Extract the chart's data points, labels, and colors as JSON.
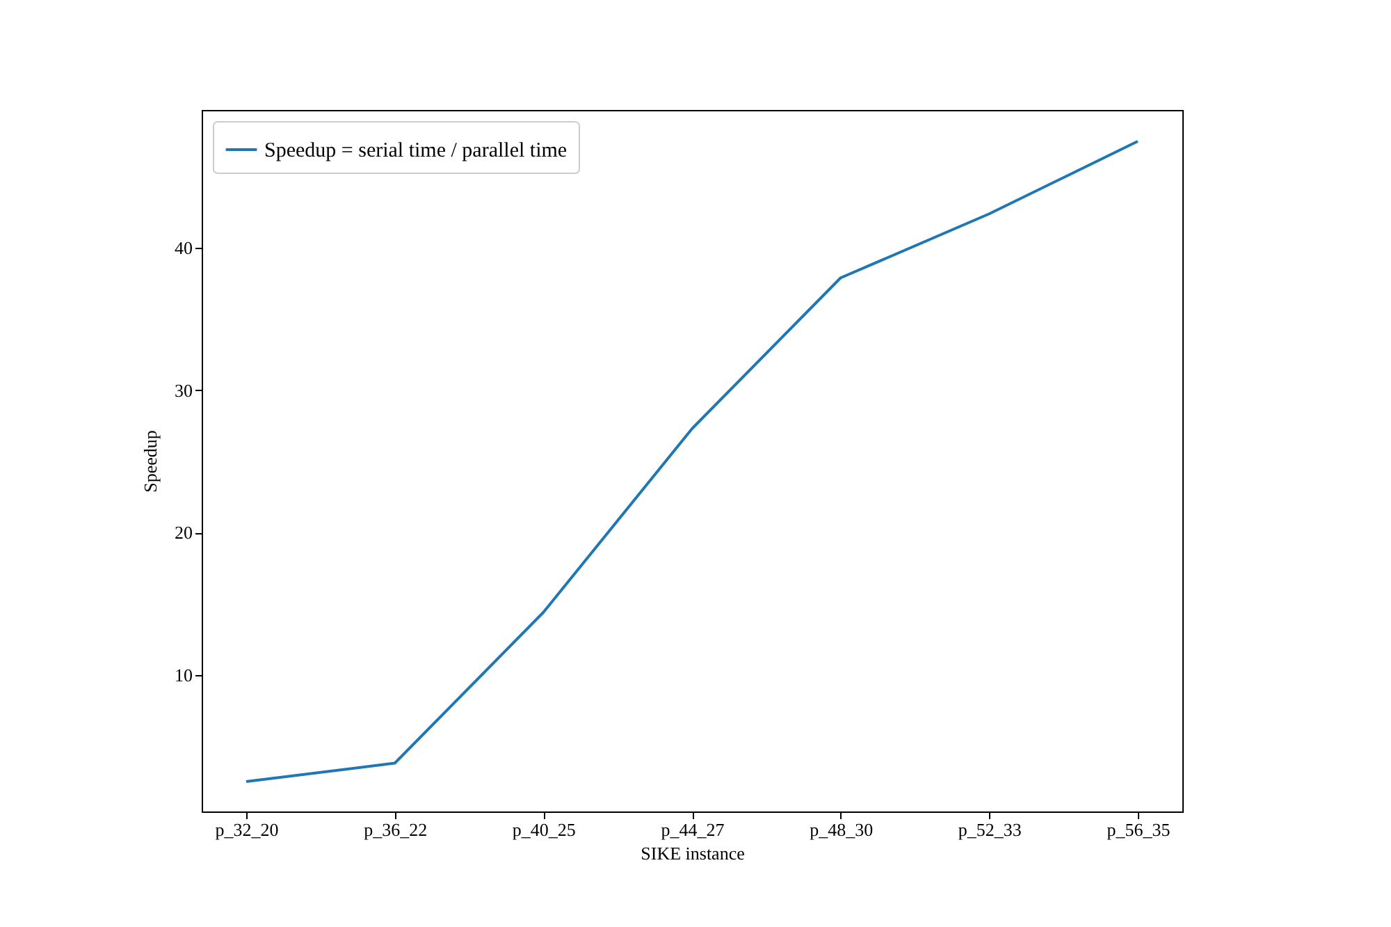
{
  "chart_data": {
    "type": "line",
    "xlabel": "SIKE instance",
    "ylabel": "Speedup",
    "categories": [
      "p_32_20",
      "p_36_22",
      "p_40_25",
      "p_44_27",
      "p_48_30",
      "p_52_33",
      "p_56_35"
    ],
    "series": [
      {
        "name": "Speedup = serial time / parallel time",
        "color": "#1f77b4",
        "values": [
          2.5,
          3.8,
          14.4,
          27.3,
          37.9,
          42.4,
          47.5
        ]
      }
    ],
    "ylim": [
      0.4,
      49.7
    ],
    "yticks": [
      10,
      20,
      30,
      40
    ],
    "grid": false,
    "legend": "top left",
    "marker": "none",
    "line_style": "solid"
  }
}
